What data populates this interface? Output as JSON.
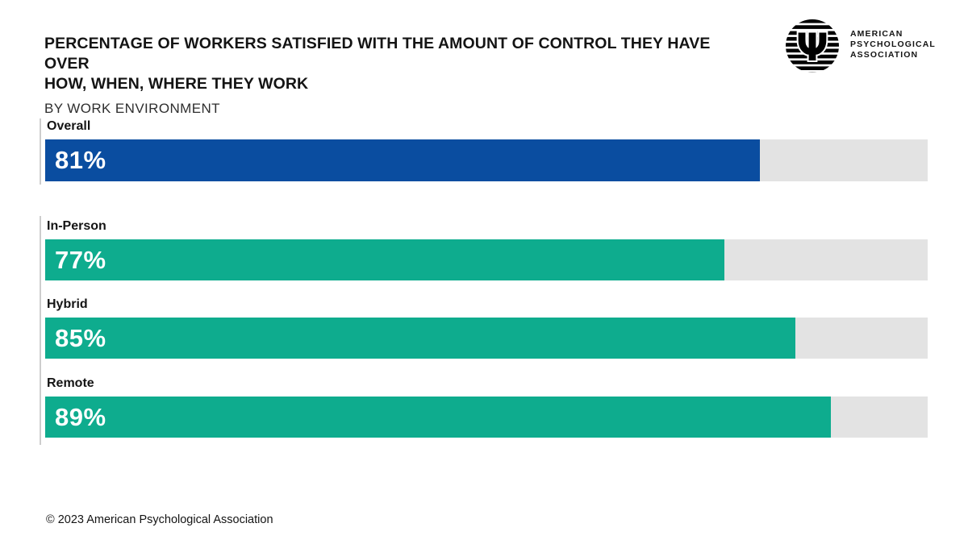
{
  "header": {
    "title_line1": "PERCENTAGE OF WORKERS SATISFIED WITH THE AMOUNT OF CONTROL THEY HAVE OVER",
    "title_line2": "HOW, WHEN, WHERE THEY WORK",
    "subtitle": "BY WORK ENVIRONMENT"
  },
  "logo": {
    "psi": "Ψ",
    "lines": [
      "AMERICAN",
      "PSYCHOLOGICAL",
      "ASSOCIATION"
    ]
  },
  "chart_data": {
    "type": "bar",
    "orientation": "horizontal",
    "title": "Percentage of workers satisfied with the amount of control they have over how, when, where they work",
    "subtitle": "By work environment",
    "categories": [
      "Overall",
      "In-Person",
      "Hybrid",
      "Remote"
    ],
    "values": [
      81,
      77,
      85,
      89
    ],
    "value_labels": [
      "81%",
      "77%",
      "85%",
      "89%"
    ],
    "unit": "%",
    "xlim": [
      0,
      100
    ],
    "grid": false,
    "legend": "none",
    "groups": [
      [
        0
      ],
      [
        1,
        2,
        3
      ]
    ],
    "bar_colors": [
      "#0a4da0",
      "#0eac8e",
      "#0eac8e",
      "#0eac8e"
    ],
    "track_color": "#e3e3e3"
  },
  "footer": {
    "copyright": "© 2023 American Psychological Association"
  },
  "colors": {
    "accent_blue": "#0a4da0",
    "accent_teal": "#0eac8e",
    "track_gray": "#e3e3e3",
    "axis_line_gray": "#cdcdcd",
    "text_black": "#141414",
    "value_text": "#ffffff",
    "background": "#ffffff"
  }
}
